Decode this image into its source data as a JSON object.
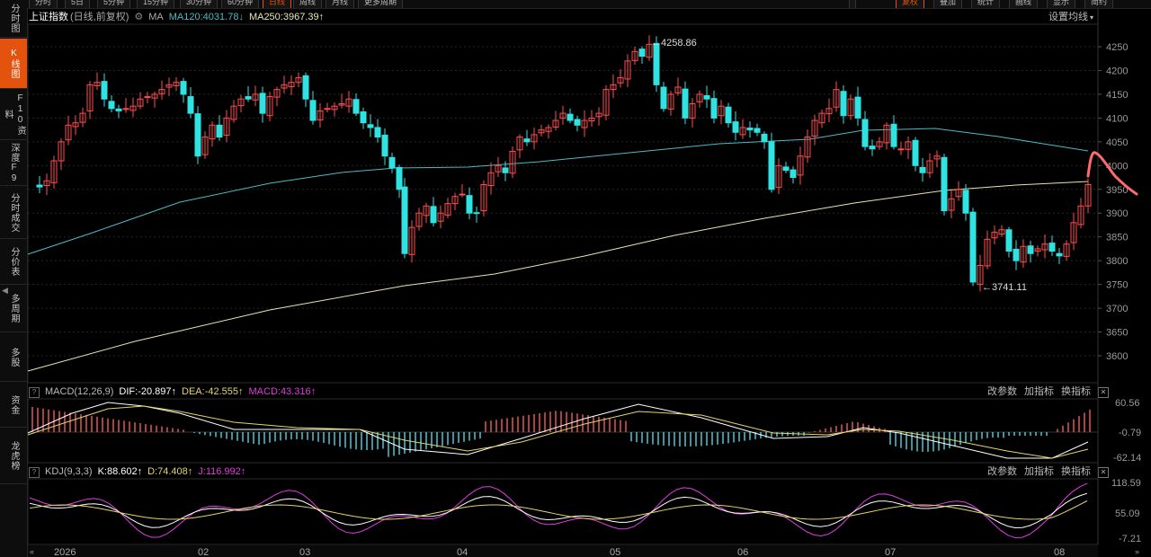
{
  "sidebar": {
    "items": [
      {
        "label": "分时图",
        "active": false
      },
      {
        "label": "K线图",
        "active": true
      },
      {
        "label": "F10资料",
        "active": false
      },
      {
        "label": "深度F9",
        "active": false
      },
      {
        "label": "分时成交",
        "active": false
      },
      {
        "label": "分价表",
        "active": false
      },
      {
        "label": "多周期",
        "active": false
      },
      {
        "label": "多股",
        "active": false
      },
      {
        "label": "资金",
        "active": false
      },
      {
        "label": "龙虎榜",
        "active": false
      }
    ]
  },
  "toolbar": {
    "left": [
      "分时",
      "5日",
      "5分钟",
      "15分钟",
      "30分钟",
      "60分钟",
      "日线",
      "周线",
      "月线",
      "更多周期"
    ],
    "active": "日线",
    "right": [
      "复权",
      "叠加",
      "统计",
      "画线",
      "显示",
      "简约"
    ]
  },
  "main": {
    "index_name": "上证指数",
    "period_note": "(日线,前复权)",
    "ma_label": "MA",
    "ma120": "MA120:4031.78",
    "ma120_arrow": "↓",
    "ma250": "MA250:3967.39",
    "ma250_arrow": "↑",
    "settings_link": "设置均线",
    "high_label": "4258.86",
    "low_label": "3741.11",
    "y_ticks": [
      4250,
      4200,
      4150,
      4100,
      4050,
      4000,
      3950,
      3900,
      3850,
      3800,
      3750,
      3700,
      3650,
      3600
    ]
  },
  "macd": {
    "title": "MACD(12,26,9)",
    "dif": "DIF:-20.897",
    "dif_arrow": "↑",
    "dea": "DEA:-42.555",
    "dea_arrow": "↑",
    "macd": "MACD:43.316",
    "macd_arrow": "↑",
    "links": [
      "改参数",
      "加指标",
      "换指标"
    ],
    "y_ticks": [
      "60.56",
      "-0.79",
      "-62.14"
    ]
  },
  "kdj": {
    "title": "KDJ(9,3,3)",
    "k": "K:88.602",
    "k_arrow": "↑",
    "d": "D:74.408",
    "d_arrow": "↑",
    "j": "J:116.992",
    "j_arrow": "↑",
    "links": [
      "改参数",
      "加指标",
      "换指标"
    ],
    "y_ticks": [
      "118.59",
      "55.09",
      "-7.21"
    ]
  },
  "x_axis": {
    "labels": [
      "2026",
      "02",
      "03",
      "04",
      "05",
      "06",
      "07",
      "08"
    ]
  },
  "colors": {
    "up": "#ff4d4d",
    "down": "#2fe3e3",
    "ma120": "#4fb8c8",
    "ma250": "#e8e4b0",
    "dif": "#ffffff",
    "dea": "#e6d36a",
    "macd": "#e03ce0",
    "accent": "#e3530e"
  },
  "chart_data": {
    "type": "candlestick",
    "title": "上证指数",
    "annotations": [
      "4258.86",
      "3741.11"
    ],
    "ylim": [
      3570,
      4280
    ],
    "x_ticks": [
      "2026",
      "02",
      "03",
      "04",
      "05",
      "06",
      "07",
      "08"
    ],
    "series": [
      {
        "name": "MA120",
        "values_approx": [
          3815,
          3890,
          3960,
          3995,
          4005,
          4040,
          4080,
          4031.78
        ]
      },
      {
        "name": "MA250",
        "values_approx": [
          3565,
          3630,
          3690,
          3760,
          3820,
          3875,
          3930,
          3967.39
        ]
      }
    ]
  }
}
